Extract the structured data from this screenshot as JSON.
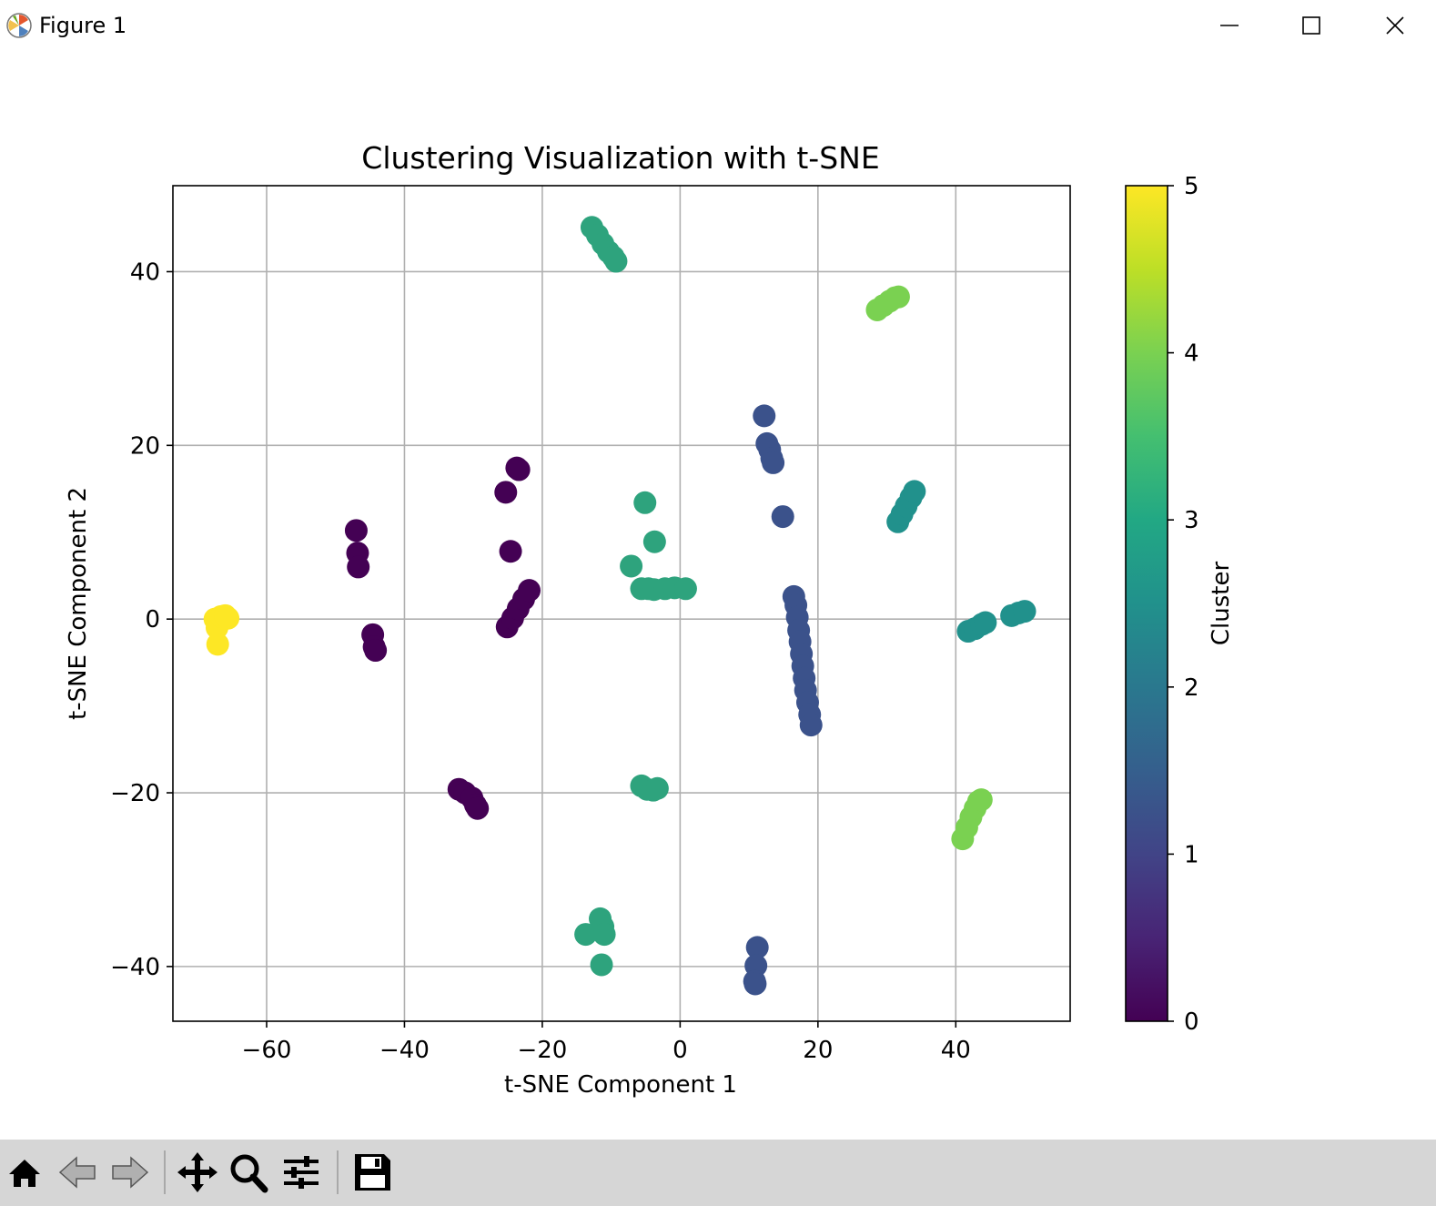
{
  "window": {
    "title": "Figure 1",
    "icons": {
      "app": "matplotlib-logo-icon",
      "minimize": "minimize-icon",
      "maximize": "maximize-icon",
      "close": "close-icon"
    }
  },
  "toolbar": {
    "buttons": [
      {
        "icon": "home-icon"
      },
      {
        "icon": "back-arrow-icon"
      },
      {
        "icon": "forward-arrow-icon"
      },
      {
        "icon": "pan-move-icon"
      },
      {
        "icon": "zoom-magnifier-icon"
      },
      {
        "icon": "configure-subplots-icon"
      },
      {
        "icon": "save-disk-icon"
      }
    ]
  },
  "chart_data": {
    "type": "scatter",
    "title": "Clustering Visualization with t-SNE",
    "xlabel": "t-SNE Component 1",
    "ylabel": "t-SNE Component 2",
    "xlim": [
      -73.6,
      56.6
    ],
    "ylim": [
      -46.3,
      49.9
    ],
    "xticks": [
      -60,
      -40,
      -20,
      0,
      20,
      40
    ],
    "yticks": [
      -40,
      -20,
      0,
      20,
      40
    ],
    "xtick_labels": [
      "−60",
      "−40",
      "−20",
      "0",
      "20",
      "40"
    ],
    "ytick_labels": [
      "−40",
      "−20",
      "0",
      "20",
      "40"
    ],
    "grid": true,
    "colormap": "viridis",
    "colorbar": {
      "label": "Cluster",
      "range": [
        0,
        5
      ],
      "ticks": [
        0,
        1,
        2,
        3,
        4,
        5
      ],
      "tick_labels": [
        "0",
        "1",
        "2",
        "3",
        "4",
        "5"
      ]
    },
    "series": [
      {
        "cluster": 0,
        "color": "#440154",
        "points": [
          [
            -47.0,
            10.2
          ],
          [
            -46.8,
            7.6
          ],
          [
            -46.7,
            6.0
          ],
          [
            -44.6,
            -1.8
          ],
          [
            -44.4,
            -3.2
          ],
          [
            -44.2,
            -3.6
          ],
          [
            -25.3,
            14.6
          ],
          [
            -24.6,
            7.8
          ],
          [
            -23.7,
            17.4
          ],
          [
            -23.4,
            17.2
          ],
          [
            -25.1,
            -0.9
          ],
          [
            -24.3,
            0.1
          ],
          [
            -23.5,
            1.2
          ],
          [
            -22.7,
            2.3
          ],
          [
            -21.9,
            3.3
          ],
          [
            -32.1,
            -19.6
          ],
          [
            -31.2,
            -20.0
          ],
          [
            -30.2,
            -20.6
          ],
          [
            -29.7,
            -21.4
          ],
          [
            -29.4,
            -21.8
          ]
        ]
      },
      {
        "cluster": 1,
        "color": "#3b528b",
        "points": [
          [
            12.2,
            23.4
          ],
          [
            12.6,
            20.2
          ],
          [
            13.0,
            19.5
          ],
          [
            13.3,
            18.5
          ],
          [
            13.5,
            18.0
          ],
          [
            14.9,
            11.8
          ],
          [
            16.5,
            2.6
          ],
          [
            16.8,
            1.6
          ],
          [
            17.0,
            0.2
          ],
          [
            17.2,
            -1.3
          ],
          [
            17.4,
            -2.6
          ],
          [
            17.6,
            -4.0
          ],
          [
            17.8,
            -5.4
          ],
          [
            18.0,
            -6.8
          ],
          [
            18.2,
            -8.2
          ],
          [
            18.5,
            -9.6
          ],
          [
            18.8,
            -11.0
          ],
          [
            19.0,
            -12.2
          ],
          [
            11.2,
            -37.8
          ],
          [
            11.0,
            -39.9
          ],
          [
            10.8,
            -41.7
          ],
          [
            10.9,
            -42.0
          ]
        ]
      },
      {
        "cluster": 2,
        "color": "#21918c",
        "points": [
          [
            31.6,
            11.2
          ],
          [
            32.2,
            12.1
          ],
          [
            32.8,
            13.0
          ],
          [
            33.5,
            14.0
          ],
          [
            34.0,
            14.7
          ],
          [
            41.8,
            -1.4
          ],
          [
            42.8,
            -1.1
          ],
          [
            43.8,
            -0.6
          ],
          [
            44.3,
            -0.4
          ],
          [
            48.1,
            0.4
          ],
          [
            49.1,
            0.7
          ],
          [
            50.0,
            0.9
          ]
        ]
      },
      {
        "cluster": 3,
        "color": "#2ea37d",
        "points": [
          [
            -12.8,
            45.1
          ],
          [
            -12.0,
            44.2
          ],
          [
            -11.2,
            43.2
          ],
          [
            -10.4,
            42.3
          ],
          [
            -9.7,
            41.7
          ],
          [
            -9.3,
            41.2
          ],
          [
            -5.1,
            13.4
          ],
          [
            -3.7,
            8.9
          ],
          [
            -7.1,
            6.1
          ],
          [
            -5.6,
            3.5
          ],
          [
            -4.6,
            3.5
          ],
          [
            -3.8,
            3.4
          ],
          [
            -2.2,
            3.5
          ],
          [
            -0.8,
            3.6
          ],
          [
            0.8,
            3.5
          ],
          [
            -5.6,
            -19.2
          ],
          [
            -4.8,
            -19.6
          ],
          [
            -3.9,
            -19.7
          ],
          [
            -3.3,
            -19.5
          ],
          [
            -13.7,
            -36.3
          ],
          [
            -11.6,
            -34.5
          ],
          [
            -11.2,
            -35.4
          ],
          [
            -11.0,
            -36.3
          ],
          [
            -11.4,
            -39.8
          ]
        ]
      },
      {
        "cluster": 4,
        "color": "#7ad151",
        "points": [
          [
            28.6,
            35.6
          ],
          [
            29.5,
            36.1
          ],
          [
            30.4,
            36.6
          ],
          [
            31.2,
            37.0
          ],
          [
            31.7,
            37.1
          ],
          [
            41.0,
            -25.3
          ],
          [
            41.6,
            -24.0
          ],
          [
            42.2,
            -22.8
          ],
          [
            42.8,
            -21.8
          ],
          [
            43.3,
            -21.0
          ],
          [
            43.7,
            -20.8
          ]
        ]
      },
      {
        "cluster": 5,
        "color": "#fde725",
        "points": [
          [
            -67.5,
            0.0
          ],
          [
            -67.2,
            -1.0
          ],
          [
            -66.6,
            0.3
          ],
          [
            -66.0,
            0.4
          ],
          [
            -65.6,
            0.1
          ],
          [
            -67.1,
            -2.9
          ]
        ]
      }
    ]
  }
}
